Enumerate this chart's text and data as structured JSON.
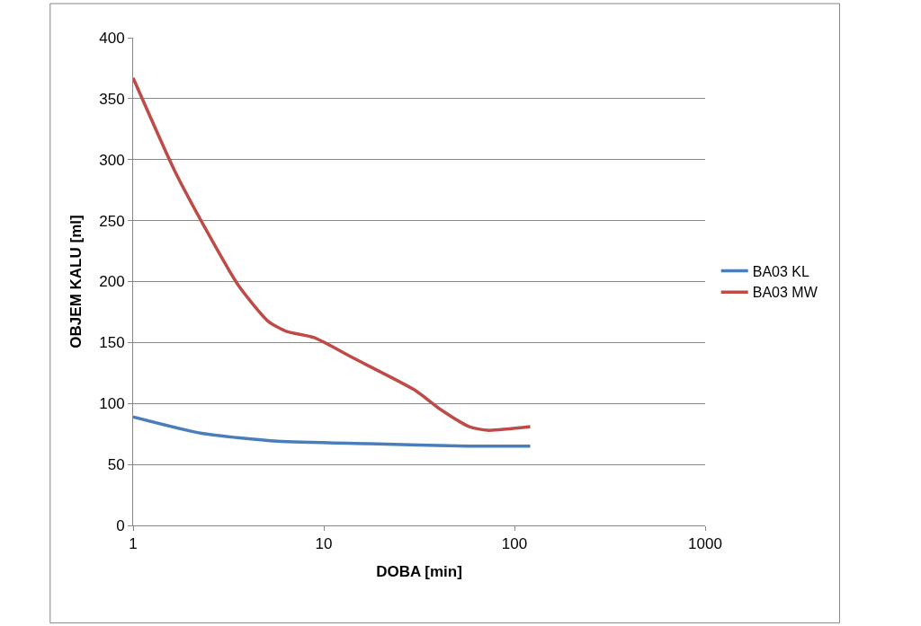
{
  "chart_data": {
    "type": "line",
    "xlabel": "DOBA [min]",
    "ylabel": "OBJEM KALU [ml]",
    "log": "x",
    "xlim": [
      1,
      1000
    ],
    "xticks": [
      1,
      10,
      100,
      1000
    ],
    "ylim": [
      0,
      400
    ],
    "yticks": [
      0,
      50,
      100,
      150,
      200,
      250,
      300,
      350,
      400
    ],
    "grid": "y",
    "legend": "right",
    "marker": "none",
    "line_style": "solid",
    "series": [
      {
        "name": "BA03 KL",
        "color": "#4a7ebb",
        "x": [
          1,
          2.29,
          5.74,
          17.3,
          58,
          121
        ],
        "values": [
          89,
          75.5,
          69,
          67,
          65,
          65
        ]
      },
      {
        "name": "BA03 MW",
        "color": "#be4b48",
        "x": [
          1,
          1.65,
          2.29,
          3.56,
          5.1,
          6.4,
          8.9,
          14.4,
          30,
          40.2,
          58,
          72.4,
          121
        ],
        "values": [
          367,
          291,
          249,
          197,
          167.5,
          159,
          154,
          137,
          111,
          96,
          81,
          78,
          81
        ]
      }
    ]
  }
}
